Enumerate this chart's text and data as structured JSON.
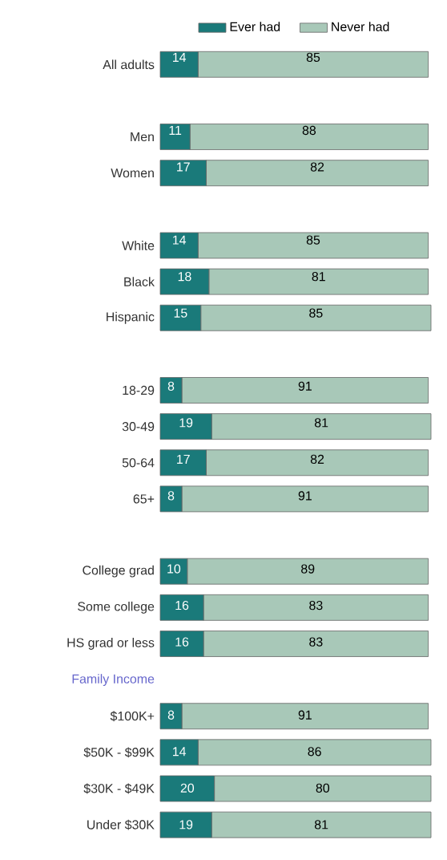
{
  "chart_data": {
    "type": "bar",
    "orientation": "horizontal",
    "stacked": true,
    "data_labels": true,
    "legend": "top",
    "tick_labels": "y",
    "categories": [
      "All adults",
      null,
      "Men",
      "Women",
      null,
      "White",
      "Black",
      "Hispanic",
      null,
      "18-29",
      "30-49",
      "50-64",
      "65+",
      null,
      "College grad",
      "Some college",
      "HS grad or less",
      "Family Income",
      "$100K+",
      "$50K - $99K",
      "$30K - $49K",
      "Under $30K"
    ],
    "series": [
      {
        "name": "Ever had",
        "color": "#1a7a7a",
        "values": [
          14,
          null,
          11,
          17,
          null,
          14,
          18,
          15,
          null,
          8,
          19,
          17,
          8,
          null,
          10,
          16,
          16,
          null,
          8,
          14,
          20,
          19
        ]
      },
      {
        "name": "Never had",
        "color": "#a8c8b8",
        "values": [
          85,
          null,
          88,
          82,
          null,
          85,
          81,
          85,
          null,
          91,
          81,
          82,
          91,
          null,
          89,
          83,
          83,
          null,
          91,
          86,
          80,
          81
        ]
      }
    ]
  }
}
